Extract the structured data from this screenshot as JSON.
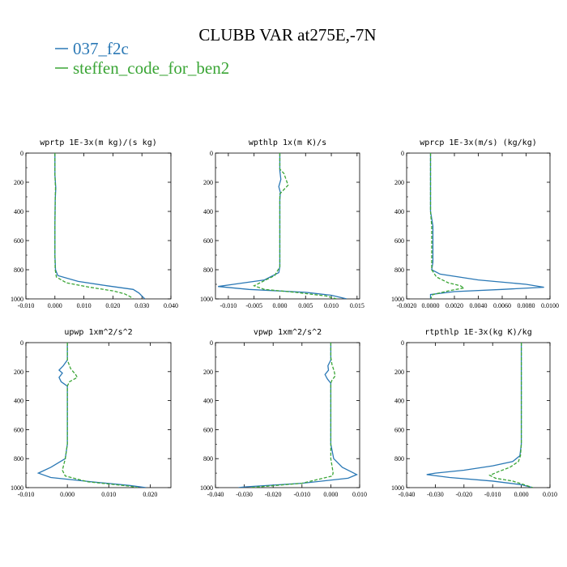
{
  "figure": {
    "title": "CLUBB VAR at275E,-7N",
    "legend": [
      {
        "label": "037_f2c",
        "color": "#2a78b5"
      },
      {
        "label": "steffen_code_for_ben2",
        "color": "#3aa535"
      }
    ]
  },
  "chart_data": [
    {
      "type": "line",
      "title": "wprtp   1E-3x(m kg)/(s kg)",
      "xlim": [
        -0.01,
        0.04
      ],
      "ylim": [
        1000,
        0
      ],
      "xticks": [
        "-0.010",
        "0.000",
        "0.010",
        "0.020",
        "0.030",
        "0.040"
      ],
      "yticks": [
        "0",
        "200",
        "400",
        "600",
        "800",
        "1000"
      ],
      "series": [
        {
          "name": "037_f2c",
          "points": [
            [
              0.0,
              0
            ],
            [
              0.0,
              150
            ],
            [
              0.0003,
              240
            ],
            [
              0.0001,
              320
            ],
            [
              0.0,
              500
            ],
            [
              0.0,
              700
            ],
            [
              0.0002,
              800
            ],
            [
              0.001,
              840
            ],
            [
              0.008,
              880
            ],
            [
              0.018,
              910
            ],
            [
              0.027,
              935
            ],
            [
              0.029,
              960
            ],
            [
              0.03,
              980
            ],
            [
              0.031,
              1000
            ]
          ]
        },
        {
          "name": "steffen_code_for_ben2",
          "points": [
            [
              0.0,
              0
            ],
            [
              0.0,
              150
            ],
            [
              0.0002,
              240
            ],
            [
              0.0001,
              320
            ],
            [
              0.0,
              500
            ],
            [
              0.0,
              700
            ],
            [
              0.0001,
              800
            ],
            [
              0.0005,
              850
            ],
            [
              0.004,
              890
            ],
            [
              0.012,
              920
            ],
            [
              0.02,
              945
            ],
            [
              0.024,
              965
            ],
            [
              0.026,
              985
            ],
            [
              0.027,
              1000
            ]
          ]
        }
      ]
    },
    {
      "type": "line",
      "title": "wpthlp   1x(m K)/s",
      "xlim": [
        -0.0125,
        0.0155
      ],
      "ylim": [
        1000,
        0
      ],
      "xticks": [
        "-0.010",
        "-0.005",
        "0.000",
        "0.005",
        "0.010",
        "0.015"
      ],
      "yticks": [
        "0",
        "200",
        "400",
        "600",
        "800",
        "1000"
      ],
      "series": [
        {
          "name": "037_f2c",
          "points": [
            [
              0.0,
              0
            ],
            [
              0.0,
              120
            ],
            [
              0.0002,
              180
            ],
            [
              -0.0002,
              230
            ],
            [
              0.0001,
              270
            ],
            [
              0.0,
              320
            ],
            [
              0.0,
              600
            ],
            [
              0.0,
              780
            ],
            [
              -0.0002,
              820
            ],
            [
              -0.003,
              870
            ],
            [
              -0.009,
              900
            ],
            [
              -0.012,
              915
            ],
            [
              -0.006,
              935
            ],
            [
              0.005,
              955
            ],
            [
              0.01,
              975
            ],
            [
              0.013,
              1000
            ]
          ]
        },
        {
          "name": "steffen_code_for_ben2",
          "points": [
            [
              0.0,
              0
            ],
            [
              0.0,
              110
            ],
            [
              0.0008,
              140
            ],
            [
              0.0012,
              180
            ],
            [
              0.0016,
              220
            ],
            [
              0.0008,
              250
            ],
            [
              0.0,
              280
            ],
            [
              0.0,
              600
            ],
            [
              0.0,
              780
            ],
            [
              -0.001,
              840
            ],
            [
              -0.005,
              910
            ],
            [
              -0.003,
              935
            ],
            [
              0.003,
              955
            ],
            [
              0.009,
              980
            ],
            [
              0.011,
              1000
            ]
          ]
        }
      ]
    },
    {
      "type": "line",
      "title": "wprcp   1E-3x(m/s) (kg/kg)",
      "xlim": [
        -0.002,
        0.01
      ],
      "ylim": [
        1000,
        0
      ],
      "xticks": [
        "-0.0020",
        "0.0000",
        "0.0020",
        "0.0040",
        "0.0060",
        "0.0080",
        "0.0100"
      ],
      "yticks": [
        "0",
        "200",
        "400",
        "600",
        "800",
        "1000"
      ],
      "series": [
        {
          "name": "037_f2c",
          "points": [
            [
              0.0,
              0
            ],
            [
              0.0,
              400
            ],
            [
              0.0001,
              450
            ],
            [
              0.0002,
              500
            ],
            [
              0.0002,
              650
            ],
            [
              0.0002,
              750
            ],
            [
              0.0001,
              800
            ],
            [
              0.0008,
              830
            ],
            [
              0.004,
              870
            ],
            [
              0.008,
              900
            ],
            [
              0.0095,
              920
            ],
            [
              0.006,
              935
            ],
            [
              0.002,
              950
            ],
            [
              0.0,
              970
            ],
            [
              0.0,
              1000
            ]
          ]
        },
        {
          "name": "steffen_code_for_ben2",
          "points": [
            [
              0.0,
              0
            ],
            [
              0.0,
              400
            ],
            [
              0.0001,
              500
            ],
            [
              0.0001,
              700
            ],
            [
              0.0001,
              800
            ],
            [
              0.0005,
              850
            ],
            [
              0.0015,
              890
            ],
            [
              0.0025,
              910
            ],
            [
              0.0028,
              925
            ],
            [
              0.0015,
              945
            ],
            [
              0.0002,
              970
            ],
            [
              0.0,
              1000
            ]
          ]
        }
      ]
    },
    {
      "type": "line",
      "title": "upwp   1xm^2/s^2",
      "xlim": [
        -0.01,
        0.025
      ],
      "ylim": [
        1000,
        0
      ],
      "xticks": [
        "-0.010",
        "0.000",
        "0.010",
        "0.020"
      ],
      "yticks": [
        "0",
        "200",
        "400",
        "600",
        "800",
        "1000"
      ],
      "series": [
        {
          "name": "037_f2c",
          "points": [
            [
              0.0,
              0
            ],
            [
              0.0,
              120
            ],
            [
              -0.001,
              160
            ],
            [
              -0.002,
              190
            ],
            [
              -0.0012,
              210
            ],
            [
              -0.002,
              240
            ],
            [
              -0.0015,
              270
            ],
            [
              0.0,
              300
            ],
            [
              0.0,
              700
            ],
            [
              -0.0005,
              800
            ],
            [
              -0.004,
              860
            ],
            [
              -0.007,
              900
            ],
            [
              -0.004,
              930
            ],
            [
              0.006,
              960
            ],
            [
              0.015,
              985
            ],
            [
              0.019,
              1000
            ]
          ]
        },
        {
          "name": "steffen_code_for_ben2",
          "points": [
            [
              0.0,
              0
            ],
            [
              0.0,
              120
            ],
            [
              0.0008,
              180
            ],
            [
              0.002,
              220
            ],
            [
              0.0024,
              240
            ],
            [
              0.0005,
              270
            ],
            [
              0.0,
              300
            ],
            [
              0.0,
              700
            ],
            [
              -0.0005,
              800
            ],
            [
              -0.0012,
              880
            ],
            [
              -0.0005,
              920
            ],
            [
              0.005,
              960
            ],
            [
              0.015,
              990
            ],
            [
              0.017,
              1000
            ]
          ]
        }
      ]
    },
    {
      "type": "line",
      "title": "vpwp   1xm^2/s^2",
      "xlim": [
        -0.04,
        0.01
      ],
      "ylim": [
        1000,
        0
      ],
      "xticks": [
        "-0.040",
        "-0.030",
        "-0.020",
        "-0.010",
        "0.000",
        "0.010"
      ],
      "yticks": [
        "0",
        "200",
        "400",
        "600",
        "800",
        "1000"
      ],
      "series": [
        {
          "name": "037_f2c",
          "points": [
            [
              0.0,
              0
            ],
            [
              0.0,
              120
            ],
            [
              -0.001,
              160
            ],
            [
              -0.0008,
              190
            ],
            [
              -0.002,
              220
            ],
            [
              -0.0012,
              250
            ],
            [
              0.0,
              280
            ],
            [
              0.0,
              700
            ],
            [
              0.001,
              800
            ],
            [
              0.004,
              860
            ],
            [
              0.007,
              890
            ],
            [
              0.009,
              910
            ],
            [
              0.006,
              935
            ],
            [
              -0.01,
              970
            ],
            [
              -0.03,
              995
            ],
            [
              -0.032,
              1000
            ]
          ]
        },
        {
          "name": "steffen_code_for_ben2",
          "points": [
            [
              0.0,
              0
            ],
            [
              0.0,
              100
            ],
            [
              0.0004,
              150
            ],
            [
              0.0012,
              200
            ],
            [
              0.0015,
              230
            ],
            [
              0.0004,
              260
            ],
            [
              0.0,
              280
            ],
            [
              0.0,
              700
            ],
            [
              0.0,
              800
            ],
            [
              0.0005,
              860
            ],
            [
              0.0008,
              900
            ],
            [
              0.0005,
              920
            ],
            [
              -0.01,
              970
            ],
            [
              -0.028,
              1000
            ]
          ]
        }
      ]
    },
    {
      "type": "line",
      "title": "rtpthlp   1E-3x(kg K)/kg",
      "xlim": [
        -0.04,
        0.01
      ],
      "ylim": [
        1000,
        0
      ],
      "xticks": [
        "-0.040",
        "-0.030",
        "-0.020",
        "-0.010",
        "0.000",
        "0.010"
      ],
      "yticks": [
        "0",
        "200",
        "400",
        "600",
        "800",
        "1000"
      ],
      "series": [
        {
          "name": "037_f2c",
          "points": [
            [
              0.0,
              0
            ],
            [
              0.0,
              700
            ],
            [
              -0.0005,
              780
            ],
            [
              -0.003,
              820
            ],
            [
              -0.01,
              850
            ],
            [
              -0.02,
              880
            ],
            [
              -0.03,
              900
            ],
            [
              -0.033,
              910
            ],
            [
              -0.025,
              930
            ],
            [
              -0.01,
              955
            ],
            [
              0.0,
              980
            ],
            [
              0.004,
              1000
            ]
          ]
        },
        {
          "name": "steffen_code_for_ben2",
          "points": [
            [
              0.0,
              0
            ],
            [
              0.0,
              700
            ],
            [
              -0.0003,
              780
            ],
            [
              -0.001,
              820
            ],
            [
              -0.004,
              860
            ],
            [
              -0.008,
              890
            ],
            [
              -0.011,
              915
            ],
            [
              -0.009,
              935
            ],
            [
              -0.003,
              955
            ],
            [
              0.001,
              980
            ],
            [
              0.004,
              1000
            ]
          ]
        }
      ]
    }
  ]
}
